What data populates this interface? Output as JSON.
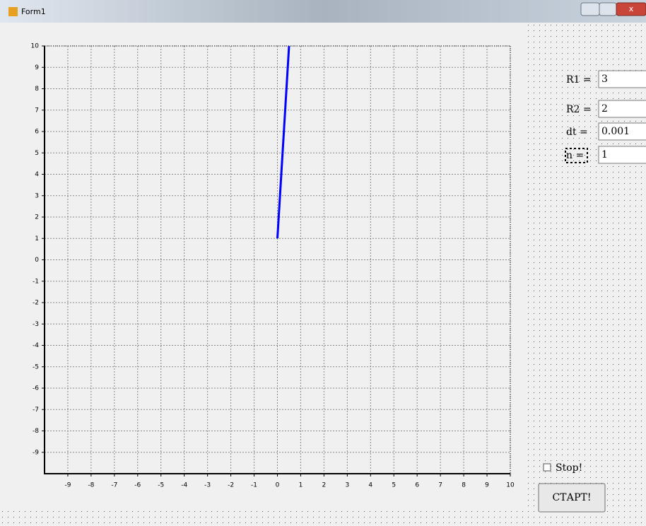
{
  "window": {
    "title": "Form1"
  },
  "chart_data": {
    "type": "line",
    "x": [
      0,
      0.5
    ],
    "series": [
      {
        "color": "#0000ff",
        "values": [
          1,
          10
        ]
      }
    ],
    "xlim": [
      -10,
      10
    ],
    "xticks": [
      -9,
      -8,
      -7,
      -6,
      -5,
      -4,
      -3,
      -2,
      -1,
      0,
      1,
      2,
      3,
      4,
      5,
      6,
      7,
      8,
      9,
      10
    ],
    "ylim": [
      -10,
      10
    ],
    "yticks": [
      -9,
      -8,
      -7,
      -6,
      -5,
      -4,
      -3,
      -2,
      -1,
      0,
      1,
      2,
      3,
      4,
      5,
      6,
      7,
      8,
      9,
      10
    ],
    "grid": true
  },
  "form": {
    "fields": [
      {
        "label": "R1 =",
        "value": "3"
      },
      {
        "label": "R2 =",
        "value": "2"
      },
      {
        "label": "dt =",
        "value": "0.001"
      },
      {
        "label": "n =",
        "value": "1"
      }
    ],
    "checkbox": "Stop!",
    "button": "СТАРТ!"
  }
}
